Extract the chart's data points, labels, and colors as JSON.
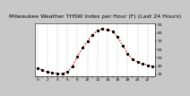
{
  "title": "Milwaukee Weather THSW Index per Hour (F) (Last 24 Hours)",
  "hours": [
    0,
    1,
    2,
    3,
    4,
    5,
    6,
    7,
    8,
    9,
    10,
    11,
    12,
    13,
    14,
    15,
    16,
    17,
    18,
    19,
    20,
    21,
    22,
    23
  ],
  "values": [
    38,
    35,
    33,
    32,
    31,
    31,
    33,
    40,
    52,
    62,
    70,
    78,
    83,
    85,
    84,
    82,
    75,
    65,
    55,
    48,
    45,
    43,
    41,
    40
  ],
  "line_color": "#dd0000",
  "marker_color": "#000000",
  "bg_color": "#c8c8c8",
  "plot_bg": "#ffffff",
  "grid_color": "#aaaaaa",
  "title_color": "#000000",
  "ylim": [
    28,
    92
  ],
  "yticks": [
    30,
    40,
    50,
    60,
    70,
    80,
    90
  ],
  "xlim": [
    -0.5,
    23.5
  ],
  "title_fontsize": 4.5,
  "axis_fontsize": 3.2
}
